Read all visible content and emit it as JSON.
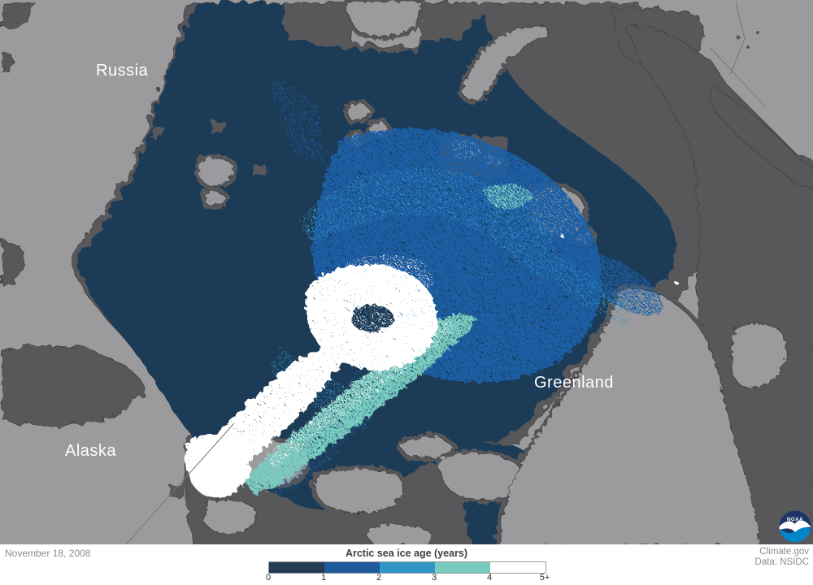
{
  "map": {
    "labels": {
      "russia": "Russia",
      "alaska": "Alaska",
      "greenland": "Greenland"
    },
    "colors": {
      "land": "#9b9b9d",
      "ocean_open": "#58585a",
      "coastline": "#454548",
      "border_line": "#77777a",
      "ice_0_1": "#1e3a56",
      "ice_1_2": "#1f5ea6",
      "ice_2_3": "#3498cb",
      "ice_3_4": "#79ccc1",
      "ice_4_plus": "#ffffff"
    }
  },
  "footer": {
    "date": "November 18, 2008",
    "legend": {
      "title": "Arctic sea ice age (years)",
      "ticks": [
        "0",
        "1",
        "2",
        "3",
        "4",
        "5+"
      ],
      "segment_colors": [
        "#263c55",
        "#1d5b9e",
        "#3096c6",
        "#77cabc",
        "#ffffff"
      ]
    },
    "credits": {
      "line1": "Climate.gov",
      "line2": "Data: NSIDC"
    }
  },
  "logo": {
    "text": "NOAA",
    "navy": "#1d3566",
    "blue": "#0085cb"
  }
}
